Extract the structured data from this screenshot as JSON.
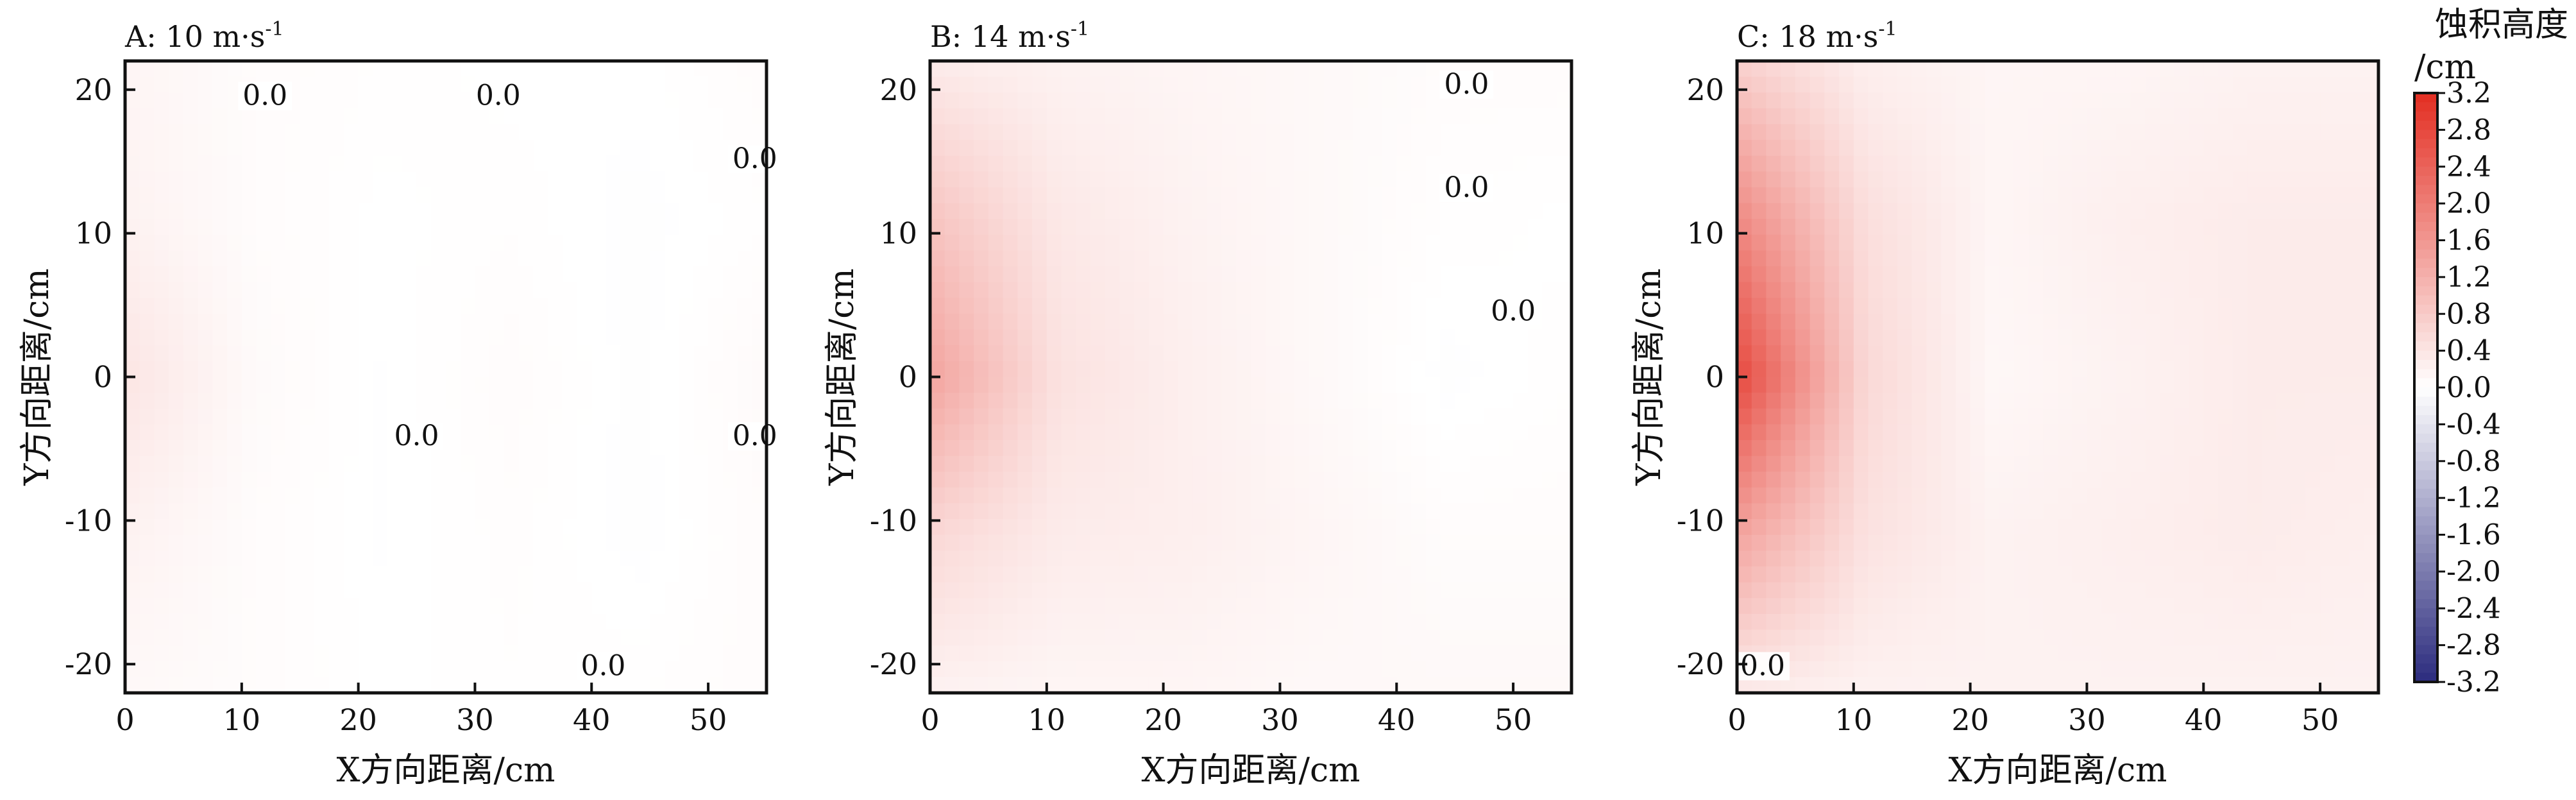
{
  "figure": {
    "colorbar": {
      "title": "蚀积高度",
      "unit": "/cm",
      "ticks": [
        "3.2",
        "2.8",
        "2.4",
        "2.0",
        "1.6",
        "1.2",
        "0.8",
        "0.4",
        "0.0",
        "-0.4",
        "-0.8",
        "-1.2",
        "-1.6",
        "-2.0",
        "-2.4",
        "-2.8",
        "-3.2"
      ],
      "range": [
        -3.2,
        3.2
      ],
      "colors": {
        "low": "#2c2c7e",
        "zero": "#ffffff",
        "high": "#e32e22"
      }
    }
  },
  "chart_data": [
    {
      "type": "heatmap",
      "title": "A: 10 m·s",
      "title_sup": "-1",
      "xlabel": "X方向距离/cm",
      "ylabel": "Y方向距离/cm",
      "x_ticks": [
        "0",
        "10",
        "20",
        "30",
        "40",
        "50"
      ],
      "y_ticks": [
        "20",
        "10",
        "0",
        "-10",
        "-20"
      ],
      "xlim": [
        0,
        55
      ],
      "ylim": [
        -22,
        22
      ],
      "contour_label": "0.0",
      "x": [
        0,
        11,
        22,
        33,
        44,
        55
      ],
      "y": [
        22,
        11,
        0,
        -11,
        -22
      ],
      "z": [
        [
          0.15,
          0.05,
          0.02,
          0.0,
          0.0,
          0.05
        ],
        [
          0.2,
          0.05,
          0.0,
          0.02,
          -0.02,
          0.02
        ],
        [
          0.4,
          0.08,
          -0.01,
          0.05,
          -0.02,
          0.08
        ],
        [
          0.2,
          0.05,
          -0.01,
          0.03,
          -0.02,
          0.05
        ],
        [
          0.1,
          0.05,
          0.0,
          0.02,
          0.02,
          0.05
        ]
      ]
    },
    {
      "type": "heatmap",
      "title": "B: 14 m·s",
      "title_sup": "-1",
      "xlabel": "X方向距离/cm",
      "ylabel": "Y方向距离/cm",
      "x_ticks": [
        "0",
        "10",
        "20",
        "30",
        "40",
        "50"
      ],
      "y_ticks": [
        "20",
        "10",
        "0",
        "-10",
        "-20"
      ],
      "xlim": [
        0,
        55
      ],
      "ylim": [
        -22,
        22
      ],
      "contour_label": "0.0",
      "x": [
        0,
        11,
        22,
        33,
        44,
        55
      ],
      "y": [
        22,
        11,
        0,
        -11,
        -22
      ],
      "z": [
        [
          0.3,
          0.2,
          0.15,
          0.1,
          0.05,
          0.05
        ],
        [
          0.9,
          0.35,
          0.2,
          0.1,
          0.02,
          0.0
        ],
        [
          1.4,
          0.45,
          0.25,
          0.1,
          -0.02,
          0.02
        ],
        [
          0.6,
          0.3,
          0.25,
          0.15,
          0.05,
          0.05
        ],
        [
          0.2,
          0.15,
          0.15,
          0.1,
          0.1,
          0.1
        ]
      ]
    },
    {
      "type": "heatmap",
      "title": "C: 18 m·s",
      "title_sup": "-1",
      "xlabel": "X方向距离/cm",
      "ylabel": "Y方向距离/cm",
      "x_ticks": [
        "0",
        "10",
        "20",
        "30",
        "40",
        "50"
      ],
      "y_ticks": [
        "20",
        "10",
        "0",
        "-10",
        "-20"
      ],
      "xlim": [
        0,
        55
      ],
      "ylim": [
        -22,
        22
      ],
      "contour_label": "0.0",
      "x": [
        0,
        11,
        22,
        33,
        44,
        55
      ],
      "y": [
        22,
        11,
        0,
        -11,
        -22
      ],
      "z": [
        [
          0.7,
          0.25,
          0.15,
          0.15,
          0.2,
          0.2
        ],
        [
          1.8,
          0.5,
          0.15,
          0.25,
          0.3,
          0.3
        ],
        [
          2.8,
          0.6,
          0.12,
          0.2,
          0.3,
          0.3
        ],
        [
          1.4,
          0.45,
          0.2,
          0.25,
          0.3,
          0.25
        ],
        [
          0.3,
          0.2,
          0.2,
          0.2,
          0.2,
          0.2
        ]
      ]
    }
  ]
}
